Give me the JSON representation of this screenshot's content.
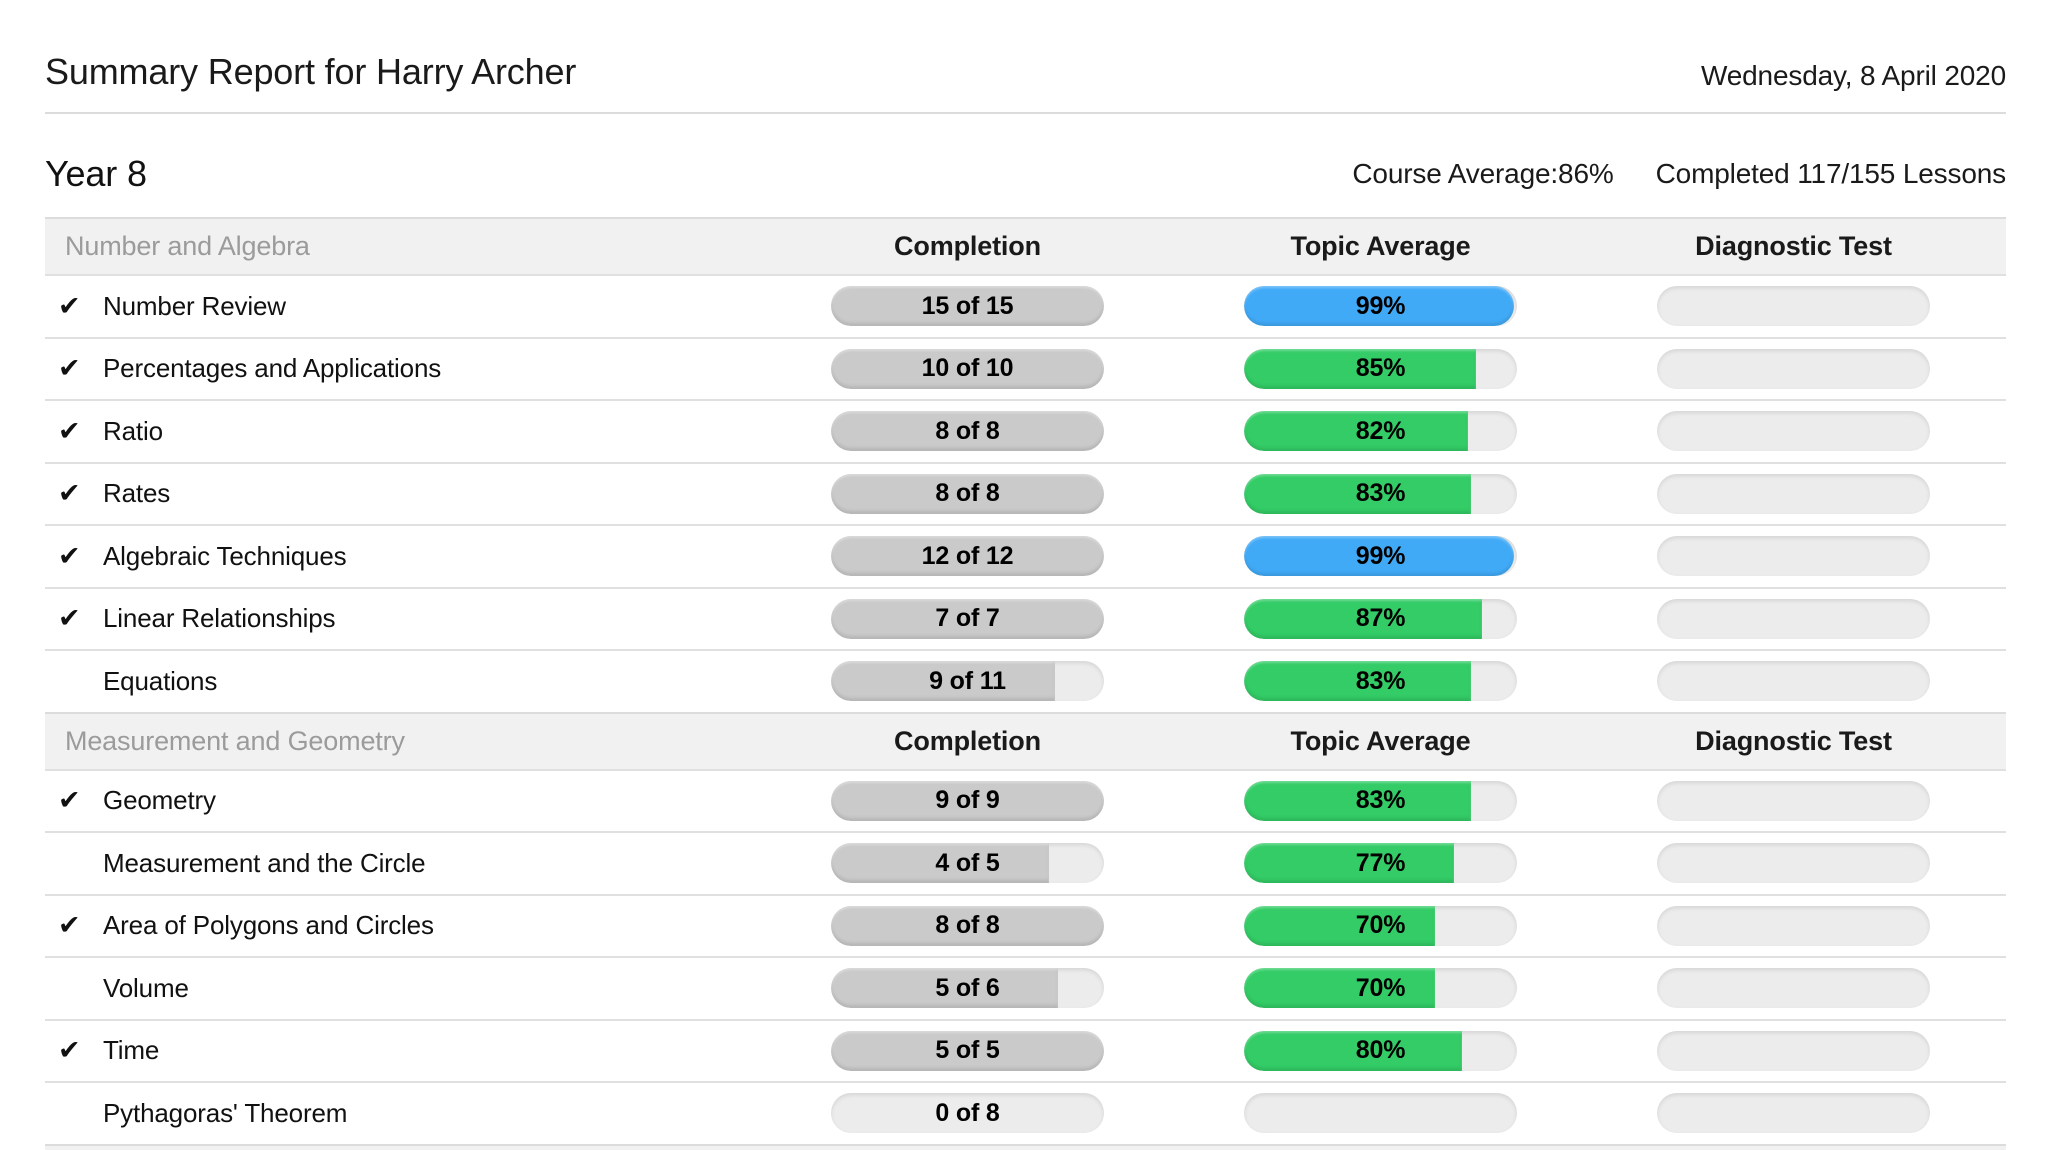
{
  "page": {
    "title": "Summary Report for Harry Archer",
    "date": "Wednesday, 8 April 2020",
    "course_name": "Year 8",
    "course_average_label": "Course Average:",
    "course_average_value": "86%",
    "completed_lessons": "Completed 117/155 Lessons"
  },
  "columns": {
    "completion": "Completion",
    "topic_average": "Topic Average",
    "diagnostic": "Diagnostic Test"
  },
  "icons": {
    "completed_check": "✔"
  },
  "colors": {
    "topic_green": "#33cc66",
    "topic_blue": "#41aaf7",
    "completion_gray": "#cacaca",
    "track_gray": "#ececec",
    "band_bg": "#f1f1f1"
  },
  "sections": [
    {
      "name": "Number and Algebra",
      "rows": [
        {
          "topic": "Number Review",
          "completed": true,
          "completion": {
            "label": "15 of 15",
            "pct": 100
          },
          "topic_average": {
            "label": "99%",
            "pct": 99,
            "color": "blue"
          },
          "diagnostic": {
            "label": "",
            "pct": 0
          }
        },
        {
          "topic": "Percentages and Applications",
          "completed": true,
          "completion": {
            "label": "10 of 10",
            "pct": 100
          },
          "topic_average": {
            "label": "85%",
            "pct": 85,
            "color": "green"
          },
          "diagnostic": {
            "label": "",
            "pct": 0
          }
        },
        {
          "topic": "Ratio",
          "completed": true,
          "completion": {
            "label": "8 of 8",
            "pct": 100
          },
          "topic_average": {
            "label": "82%",
            "pct": 82,
            "color": "green"
          },
          "diagnostic": {
            "label": "",
            "pct": 0
          }
        },
        {
          "topic": "Rates",
          "completed": true,
          "completion": {
            "label": "8 of 8",
            "pct": 100
          },
          "topic_average": {
            "label": "83%",
            "pct": 83,
            "color": "green"
          },
          "diagnostic": {
            "label": "",
            "pct": 0
          }
        },
        {
          "topic": "Algebraic Techniques",
          "completed": true,
          "completion": {
            "label": "12 of 12",
            "pct": 100
          },
          "topic_average": {
            "label": "99%",
            "pct": 99,
            "color": "blue"
          },
          "diagnostic": {
            "label": "",
            "pct": 0
          }
        },
        {
          "topic": "Linear Relationships",
          "completed": true,
          "completion": {
            "label": "7 of 7",
            "pct": 100
          },
          "topic_average": {
            "label": "87%",
            "pct": 87,
            "color": "green"
          },
          "diagnostic": {
            "label": "",
            "pct": 0
          }
        },
        {
          "topic": "Equations",
          "completed": false,
          "completion": {
            "label": "9 of 11",
            "pct": 82
          },
          "topic_average": {
            "label": "83%",
            "pct": 83,
            "color": "green"
          },
          "diagnostic": {
            "label": "",
            "pct": 0
          }
        }
      ]
    },
    {
      "name": "Measurement and Geometry",
      "rows": [
        {
          "topic": "Geometry",
          "completed": true,
          "completion": {
            "label": "9 of 9",
            "pct": 100
          },
          "topic_average": {
            "label": "83%",
            "pct": 83,
            "color": "green"
          },
          "diagnostic": {
            "label": "",
            "pct": 0
          }
        },
        {
          "topic": "Measurement and the Circle",
          "completed": false,
          "completion": {
            "label": "4 of 5",
            "pct": 80
          },
          "topic_average": {
            "label": "77%",
            "pct": 77,
            "color": "green"
          },
          "diagnostic": {
            "label": "",
            "pct": 0
          }
        },
        {
          "topic": "Area of Polygons and Circles",
          "completed": true,
          "completion": {
            "label": "8 of 8",
            "pct": 100
          },
          "topic_average": {
            "label": "70%",
            "pct": 70,
            "color": "green"
          },
          "diagnostic": {
            "label": "",
            "pct": 0
          }
        },
        {
          "topic": "Volume",
          "completed": false,
          "completion": {
            "label": "5 of 6",
            "pct": 83
          },
          "topic_average": {
            "label": "70%",
            "pct": 70,
            "color": "green"
          },
          "diagnostic": {
            "label": "",
            "pct": 0
          }
        },
        {
          "topic": "Time",
          "completed": true,
          "completion": {
            "label": "5 of 5",
            "pct": 100
          },
          "topic_average": {
            "label": "80%",
            "pct": 80,
            "color": "green"
          },
          "diagnostic": {
            "label": "",
            "pct": 0
          }
        },
        {
          "topic": "Pythagoras' Theorem",
          "completed": false,
          "completion": {
            "label": "0 of 8",
            "pct": 0
          },
          "topic_average": {
            "label": "",
            "pct": 0,
            "color": "green"
          },
          "diagnostic": {
            "label": "",
            "pct": 0
          }
        }
      ]
    }
  ]
}
